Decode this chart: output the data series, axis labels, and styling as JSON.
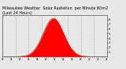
{
  "title_line1": "Milwaukee Weather  Solar Radiation  per Minute W/m2",
  "title_line2": "(Last 24 Hours)",
  "title_fontsize": 3.5,
  "background_color": "#e8e8e8",
  "plot_bg_color": "#e8e8e8",
  "fill_color": "#ff0000",
  "line_color": "#cc0000",
  "ylim": [
    0,
    900
  ],
  "xlim": [
    0,
    1440
  ],
  "ytick_values": [
    100,
    200,
    300,
    400,
    500,
    600,
    700,
    800
  ],
  "ytick_labels": [
    "1",
    "2",
    "3",
    "4",
    "5",
    "6",
    "7",
    "8"
  ],
  "grid_color": "#aaaaaa",
  "num_vgrid": 8,
  "num_points": 1440,
  "peak_time": 700,
  "peak_value": 830,
  "sigma": 140
}
